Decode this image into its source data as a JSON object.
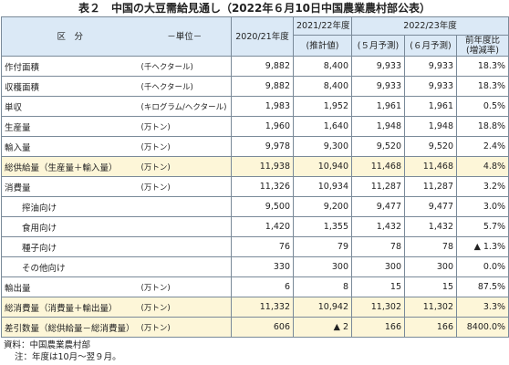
{
  "title": "表２　中国の大豆需給見通し（2022年６月10日中国農業農村部公表）",
  "table": {
    "header": {
      "category": "区　分",
      "unit": "－単位－",
      "col1": "2020/21年度",
      "col2": "2021/22年度",
      "col2_sub": "(推計値)",
      "group": "2022/23年度",
      "col3": "(５月予測)",
      "col4": "(６月予測)",
      "col5": "前年度比",
      "col5_sub": "(増減率)"
    },
    "rows": [
      {
        "label": "作付面積",
        "unit": "(千ヘクタール)",
        "values": [
          "9,882",
          "8,400",
          "9,933",
          "9,933",
          "18.3%"
        ]
      },
      {
        "label": "収穫面積",
        "unit": "(千ヘクタール)",
        "values": [
          "9,882",
          "8,400",
          "9,933",
          "9,933",
          "18.3%"
        ]
      },
      {
        "label": "単収",
        "unit": "(キログラム/ヘクタール)",
        "values": [
          "1,983",
          "1,952",
          "1,961",
          "1,961",
          "0.5%"
        ]
      },
      {
        "label": "生産量",
        "unit": "(万トン)",
        "values": [
          "1,960",
          "1,640",
          "1,948",
          "1,948",
          "18.8%"
        ]
      },
      {
        "label": "輸入量",
        "unit": "(万トン)",
        "values": [
          "9,978",
          "9,300",
          "9,520",
          "9,520",
          "2.4%"
        ]
      },
      {
        "label": "総供給量（生産量＋輸入量）",
        "unit": "(万トン)",
        "values": [
          "11,938",
          "10,940",
          "11,468",
          "11,468",
          "4.8%"
        ]
      },
      {
        "label": "消費量",
        "unit": "(万トン)",
        "values": [
          "11,326",
          "10,934",
          "11,287",
          "11,287",
          "3.2%"
        ],
        "sub": [
          {
            "label": "搾油向け",
            "values": [
              "9,500",
              "9,200",
              "9,477",
              "9,477",
              "3.0%"
            ]
          },
          {
            "label": "食用向け",
            "values": [
              "1,420",
              "1,355",
              "1,432",
              "1,432",
              "5.7%"
            ]
          },
          {
            "label": "種子向け",
            "values": [
              "76",
              "79",
              "78",
              "78",
              "▲ 1.3%"
            ]
          },
          {
            "label": "その他向け",
            "values": [
              "330",
              "300",
              "300",
              "300",
              "0.0%"
            ]
          }
        ]
      },
      {
        "label": "輸出量",
        "unit": "(万トン)",
        "values": [
          "6",
          "8",
          "15",
          "15",
          "87.5%"
        ]
      },
      {
        "label": "総消費量（消費量＋輸出量）",
        "unit": "(万トン)",
        "values": [
          "11,332",
          "10,942",
          "11,302",
          "11,302",
          "3.3%"
        ]
      },
      {
        "label": "差引数量（総供給量－総消費量）",
        "unit": "(万トン)",
        "values": [
          "606",
          "▲ 2",
          "166",
          "166",
          "8400.0%"
        ]
      }
    ]
  },
  "notes": [
    "資料：中国農業農村部",
    "注：年度は10月～翌９月。"
  ]
}
